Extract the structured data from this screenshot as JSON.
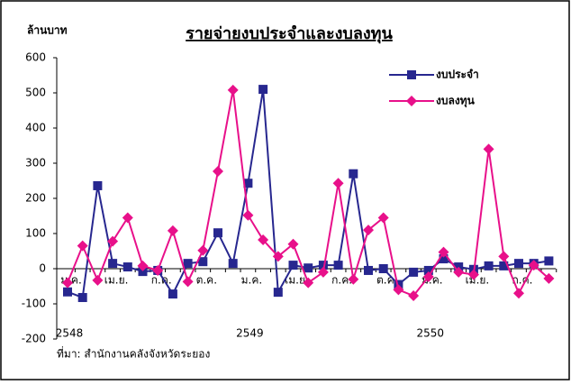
{
  "chart_data": {
    "type": "line",
    "title": "รายจ่ายงบประจำและงบลงทุน",
    "y_axis_label": "ล้านบาท",
    "source": "ที่มา: สำนักงานคลังจังหวัดระยอง",
    "categories": [
      "ม.ค.",
      null,
      null,
      "เม.ย.",
      null,
      null,
      "ก.ค.",
      null,
      null,
      "ต.ค.",
      null,
      null,
      "ม.ค.",
      null,
      null,
      "เม.ย.",
      null,
      null,
      "ก.ค.",
      null,
      null,
      "ต.ค.",
      null,
      null,
      "ม.ค.",
      null,
      null,
      "เม.ย.",
      null,
      null,
      "ก.ค.",
      null,
      null
    ],
    "years": [
      "2548",
      null,
      null,
      null,
      null,
      null,
      null,
      null,
      null,
      null,
      null,
      null,
      "2549",
      null,
      null,
      null,
      null,
      null,
      null,
      null,
      null,
      null,
      null,
      null,
      "2550",
      null,
      null,
      null,
      null,
      null,
      null,
      null,
      null
    ],
    "series": [
      {
        "name": "งบประจำ",
        "color": "#27278f",
        "marker": "square",
        "values": [
          -66,
          -82,
          236,
          15,
          5,
          -8,
          -5,
          -72,
          15,
          20,
          102,
          15,
          243,
          510,
          -67,
          10,
          2,
          10,
          10,
          270,
          -5,
          0,
          -45,
          -10,
          -5,
          28,
          5,
          -2,
          8,
          8,
          15,
          15,
          22
        ]
      },
      {
        "name": "งบลงทุน",
        "color": "#e8108a",
        "marker": "diamond",
        "values": [
          -40,
          65,
          -33,
          78,
          145,
          8,
          -5,
          108,
          -37,
          52,
          277,
          508,
          152,
          82,
          35,
          70,
          -40,
          -10,
          243,
          -30,
          110,
          145,
          -60,
          -77,
          -23,
          47,
          -10,
          -17,
          340,
          35,
          -70,
          10,
          -28
        ]
      }
    ],
    "ylim": [
      -200,
      600
    ],
    "yticks": [
      -200,
      -100,
      0,
      100,
      200,
      300,
      400,
      500,
      600
    ],
    "grid": false,
    "legend": "top-right"
  }
}
